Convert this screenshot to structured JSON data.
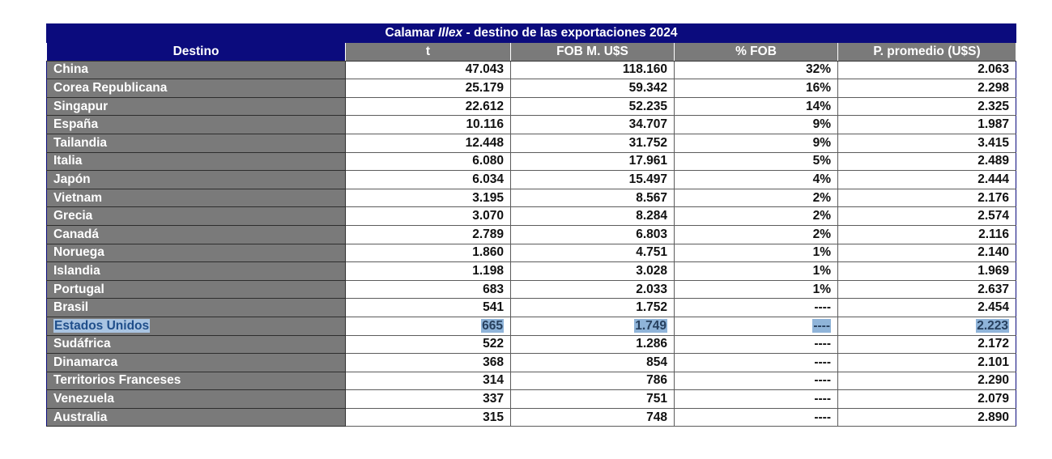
{
  "table": {
    "title_pre": "Calamar ",
    "title_em": "Illex",
    "title_post": " - destino de las exportaciones 2024",
    "headers": [
      "Destino",
      "t",
      "FOB M. U$S",
      "% FOB",
      "P. promedio (U$S)"
    ],
    "rows": [
      {
        "destino": "China",
        "t": "47.043",
        "fob": "118.160",
        "pct": "32%",
        "precio": "2.063"
      },
      {
        "destino": "Corea Republicana",
        "t": "25.179",
        "fob": "59.342",
        "pct": "16%",
        "precio": "2.298"
      },
      {
        "destino": "Singapur",
        "t": "22.612",
        "fob": "52.235",
        "pct": "14%",
        "precio": "2.325"
      },
      {
        "destino": "España",
        "t": "10.116",
        "fob": "34.707",
        "pct": "9%",
        "precio": "1.987"
      },
      {
        "destino": "Tailandia",
        "t": "12.448",
        "fob": "31.752",
        "pct": "9%",
        "precio": "3.415"
      },
      {
        "destino": "Italia",
        "t": "6.080",
        "fob": "17.961",
        "pct": "5%",
        "precio": "2.489"
      },
      {
        "destino": "Japón",
        "t": "6.034",
        "fob": "15.497",
        "pct": "4%",
        "precio": "2.444"
      },
      {
        "destino": "Vietnam",
        "t": "3.195",
        "fob": "8.567",
        "pct": "2%",
        "precio": "2.176"
      },
      {
        "destino": "Grecia",
        "t": "3.070",
        "fob": "8.284",
        "pct": "2%",
        "precio": "2.574"
      },
      {
        "destino": "Canadá",
        "t": "2.789",
        "fob": "6.803",
        "pct": "2%",
        "precio": "2.116"
      },
      {
        "destino": "Noruega",
        "t": "1.860",
        "fob": "4.751",
        "pct": "1%",
        "precio": "2.140"
      },
      {
        "destino": "Islandia",
        "t": "1.198",
        "fob": "3.028",
        "pct": "1%",
        "precio": "1.969"
      },
      {
        "destino": "Portugal",
        "t": "683",
        "fob": "2.033",
        "pct": "1%",
        "precio": "2.637"
      },
      {
        "destino": "Brasil",
        "t": "541",
        "fob": "1.752",
        "pct": "----",
        "precio": "2.454"
      },
      {
        "destino": "Estados Unidos",
        "t": "665",
        "fob": "1.749",
        "pct": "----",
        "precio": "2.223",
        "selected": true
      },
      {
        "destino": "Sudáfrica",
        "t": "522",
        "fob": "1.286",
        "pct": "----",
        "precio": "2.172"
      },
      {
        "destino": "Dinamarca",
        "t": "368",
        "fob": "854",
        "pct": "----",
        "precio": "2.101"
      },
      {
        "destino": "Territorios Franceses",
        "t": "314",
        "fob": "786",
        "pct": "----",
        "precio": "2.290"
      },
      {
        "destino": "Venezuela",
        "t": "337",
        "fob": "751",
        "pct": "----",
        "precio": "2.079"
      },
      {
        "destino": "Australia",
        "t": "315",
        "fob": "748",
        "pct": "----",
        "precio": "2.890"
      }
    ]
  },
  "colors": {
    "title_bg": "#0b0b7d",
    "header_bg": "#7a7a7a",
    "selection": "#8fb4d9"
  }
}
